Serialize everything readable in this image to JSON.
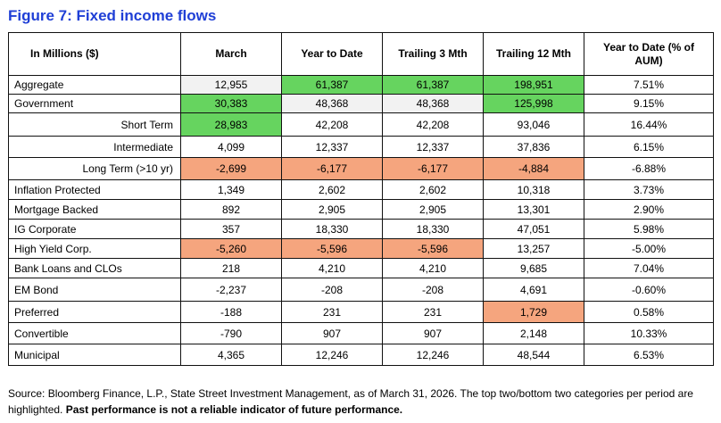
{
  "title": "Figure 7: Fixed income flows",
  "headers": [
    "In Millions ($)",
    "March",
    "Year to Date",
    "Trailing 3 Mth",
    "Trailing 12 Mth",
    "Year to Date (% of AUM)"
  ],
  "rows": [
    {
      "label": "Aggregate",
      "indent": false,
      "row_h": 21,
      "cells": [
        [
          "12,955",
          "n"
        ],
        [
          "61,387",
          "t"
        ],
        [
          "61,387",
          "t"
        ],
        [
          "198,951",
          "t"
        ],
        [
          "7.51%",
          "w"
        ]
      ]
    },
    {
      "label": "Government",
      "indent": false,
      "row_h": 21,
      "cells": [
        [
          "30,383",
          "t"
        ],
        [
          "48,368",
          "n"
        ],
        [
          "48,368",
          "n"
        ],
        [
          "125,998",
          "t"
        ],
        [
          "9.15%",
          "w"
        ]
      ]
    },
    {
      "label": "Short Term",
      "indent": true,
      "row_h": 26,
      "cells": [
        [
          "28,983",
          "t"
        ],
        [
          "42,208",
          "w"
        ],
        [
          "42,208",
          "w"
        ],
        [
          "93,046",
          "w"
        ],
        [
          "16.44%",
          "w"
        ]
      ]
    },
    {
      "label": "Intermediate",
      "indent": true,
      "row_h": 24,
      "cells": [
        [
          "4,099",
          "w"
        ],
        [
          "12,337",
          "w"
        ],
        [
          "12,337",
          "w"
        ],
        [
          "37,836",
          "w"
        ],
        [
          "6.15%",
          "w"
        ]
      ]
    },
    {
      "label": "Long Term (>10 yr)",
      "indent": true,
      "row_h": 25,
      "cells": [
        [
          "-2,699",
          "b"
        ],
        [
          "-6,177",
          "b"
        ],
        [
          "-6,177",
          "b"
        ],
        [
          "-4,884",
          "b"
        ],
        [
          "-6.88%",
          "w"
        ]
      ]
    },
    {
      "label": "Inflation Protected",
      "indent": false,
      "row_h": 22,
      "cells": [
        [
          "1,349",
          "w"
        ],
        [
          "2,602",
          "w"
        ],
        [
          "2,602",
          "w"
        ],
        [
          "10,318",
          "w"
        ],
        [
          "3.73%",
          "w"
        ]
      ]
    },
    {
      "label": "Mortgage Backed",
      "indent": false,
      "row_h": 22,
      "cells": [
        [
          "892",
          "w"
        ],
        [
          "2,905",
          "w"
        ],
        [
          "2,905",
          "w"
        ],
        [
          "13,301",
          "w"
        ],
        [
          "2.90%",
          "w"
        ]
      ]
    },
    {
      "label": "IG Corporate",
      "indent": false,
      "row_h": 22,
      "cells": [
        [
          "357",
          "w"
        ],
        [
          "18,330",
          "w"
        ],
        [
          "18,330",
          "w"
        ],
        [
          "47,051",
          "w"
        ],
        [
          "5.98%",
          "w"
        ]
      ]
    },
    {
      "label": "High Yield Corp.",
      "indent": false,
      "row_h": 22,
      "cells": [
        [
          "-5,260",
          "b"
        ],
        [
          "-5,596",
          "b"
        ],
        [
          "-5,596",
          "b"
        ],
        [
          "13,257",
          "w"
        ],
        [
          "-5.00%",
          "w"
        ]
      ]
    },
    {
      "label": "Bank Loans and CLOs",
      "indent": false,
      "row_h": 22,
      "cells": [
        [
          "218",
          "w"
        ],
        [
          "4,210",
          "w"
        ],
        [
          "4,210",
          "w"
        ],
        [
          "9,685",
          "w"
        ],
        [
          "7.04%",
          "w"
        ]
      ]
    },
    {
      "label": "EM Bond",
      "indent": false,
      "row_h": 26,
      "cells": [
        [
          "-2,237",
          "w"
        ],
        [
          "-208",
          "w"
        ],
        [
          "-208",
          "w"
        ],
        [
          "4,691",
          "w"
        ],
        [
          "-0.60%",
          "w"
        ]
      ]
    },
    {
      "label": "Preferred",
      "indent": false,
      "row_h": 24,
      "cells": [
        [
          "-188",
          "w"
        ],
        [
          "231",
          "w"
        ],
        [
          "231",
          "w"
        ],
        [
          "1,729",
          "b"
        ],
        [
          "0.58%",
          "w"
        ]
      ]
    },
    {
      "label": "Convertible",
      "indent": false,
      "row_h": 24,
      "cells": [
        [
          "-790",
          "w"
        ],
        [
          "907",
          "w"
        ],
        [
          "907",
          "w"
        ],
        [
          "2,148",
          "w"
        ],
        [
          "10.33%",
          "w"
        ]
      ]
    },
    {
      "label": "Municipal",
      "indent": false,
      "row_h": 24,
      "cells": [
        [
          "4,365",
          "w"
        ],
        [
          "12,246",
          "w"
        ],
        [
          "12,246",
          "w"
        ],
        [
          "48,544",
          "w"
        ],
        [
          "6.53%",
          "w"
        ]
      ]
    }
  ],
  "source_text": "Source: Bloomberg Finance, L.P., State Street Investment Management, as of March 31, 2026. The top two/bottom two categories per period are highlighted. ",
  "source_bold": "Past performance is not a reliable indicator of future performance.",
  "colors": {
    "title": "#1f3fd6",
    "top": "#66d45f",
    "bottom": "#f5a57e",
    "neutral": "#f2f2f2"
  }
}
